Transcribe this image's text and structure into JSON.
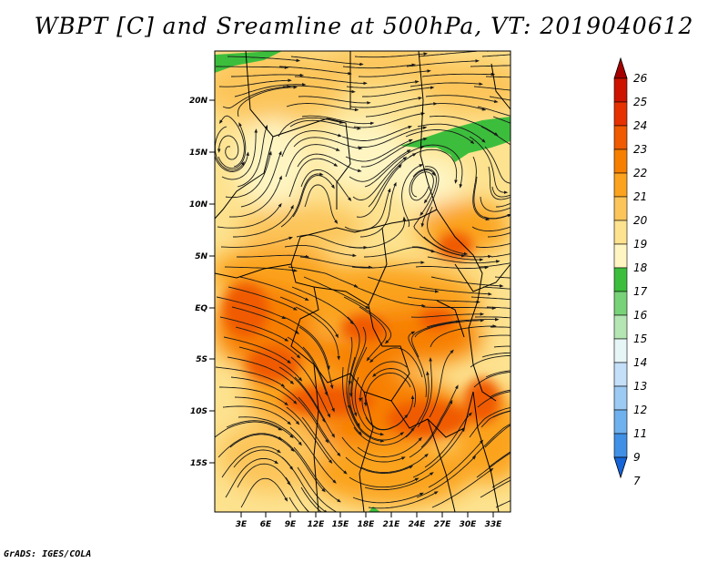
{
  "title": "WBPT [C] and Sreamline at 500hPa, VT: 2019040612",
  "footer": "GrADS: IGES/COLA",
  "map": {
    "lat_labels": [
      "20N",
      "15N",
      "10N",
      "5N",
      "EQ",
      "5S",
      "10S",
      "15S"
    ],
    "lon_labels": [
      "3E",
      "6E",
      "9E",
      "12E",
      "15E",
      "18E",
      "21E",
      "24E",
      "27E",
      "30E",
      "33E"
    ]
  },
  "colorbar": {
    "labels": [
      "26",
      "25",
      "24",
      "23",
      "22",
      "21",
      "20",
      "19",
      "18",
      "17",
      "16",
      "15",
      "14",
      "13",
      "12",
      "11",
      "9",
      "7"
    ],
    "colors": [
      "#a50000",
      "#cc1400",
      "#e63200",
      "#f05a00",
      "#f77f00",
      "#fba31e",
      "#fcc55a",
      "#fde28f",
      "#fef5c2",
      "#3cbe3c",
      "#78d278",
      "#b4e6b4",
      "#e6f5f5",
      "#c4e0f8",
      "#9ccaf3",
      "#6fb1ee",
      "#4090e6",
      "#1565d8"
    ]
  },
  "colors": {
    "background": "#ffffff",
    "streamline": "#1a1a1a",
    "border": "#000000"
  }
}
